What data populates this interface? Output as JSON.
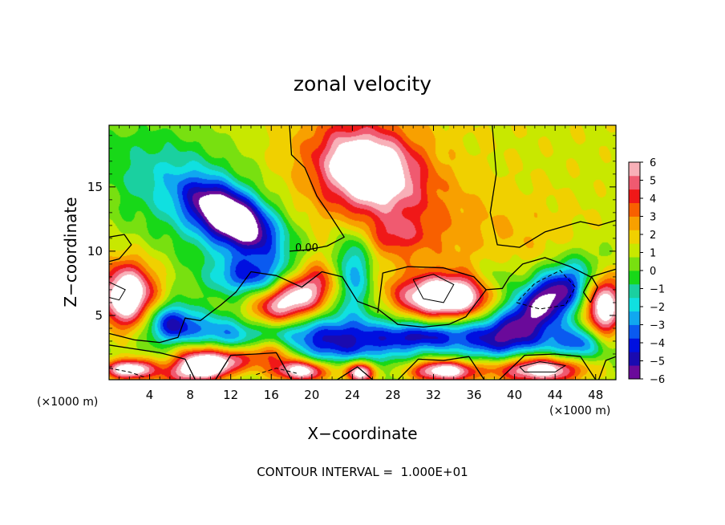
{
  "chart_data": {
    "type": "heatmap",
    "title": "zonal velocity",
    "xlabel": "X−coordinate",
    "ylabel": "Z−coordinate",
    "x_unit_left": "(×1000 m)",
    "x_unit_right": "(×1000 m)",
    "footer": "CONTOUR INTERVAL =  1.000E+01",
    "contour_label": "0.00",
    "xlim": [
      0,
      50
    ],
    "ylim": [
      0,
      19.8
    ],
    "xticks": [
      {
        "v": 4,
        "label": "4"
      },
      {
        "v": 8,
        "label": "8"
      },
      {
        "v": 12,
        "label": "12"
      },
      {
        "v": 16,
        "label": "16"
      },
      {
        "v": 20,
        "label": "20"
      },
      {
        "v": 24,
        "label": "24"
      },
      {
        "v": 28,
        "label": "28"
      },
      {
        "v": 32,
        "label": "32"
      },
      {
        "v": 36,
        "label": "36"
      },
      {
        "v": 40,
        "label": "40"
      },
      {
        "v": 44,
        "label": "44"
      },
      {
        "v": 48,
        "label": "48"
      }
    ],
    "yticks": [
      {
        "v": 5,
        "label": "5"
      },
      {
        "v": 10,
        "label": "10"
      },
      {
        "v": 15,
        "label": "15"
      }
    ],
    "colorbar": {
      "min": -6,
      "max": 6,
      "ticks": [
        "6",
        "5",
        "4",
        "3",
        "2",
        "1",
        "0",
        "−1",
        "−2",
        "−3",
        "−4",
        "−5",
        "−6"
      ],
      "colors": [
        "#6a0a9a",
        "#1a0ab0",
        "#0010e0",
        "#0a5af0",
        "#10a8f0",
        "#10e0e0",
        "#1ad0a0",
        "#18d818",
        "#78e010",
        "#c8e800",
        "#f0d000",
        "#f8a000",
        "#f86000",
        "#f01818",
        "#f05a70",
        "#f8b0b8"
      ]
    },
    "features": [
      {
        "x": 12.3,
        "z": 12.6,
        "a": 4.5,
        "b": 2.0,
        "rot": -24,
        "amp": -7.5
      },
      {
        "x": 10.5,
        "z": 12.5,
        "a": 7.5,
        "b": 3.4,
        "rot": -24,
        "amp": -2.8
      },
      {
        "x": 25.5,
        "z": 16.5,
        "a": 4.5,
        "b": 2.8,
        "rot": -10,
        "amp": 5.8
      },
      {
        "x": 27.0,
        "z": 14.0,
        "a": 9.0,
        "b": 5.5,
        "rot": -25,
        "amp": 2.6
      },
      {
        "x": 28.5,
        "z": 11.2,
        "a": 2.5,
        "b": 1.2,
        "rot": 0,
        "amp": 1.5
      },
      {
        "x": 4.0,
        "z": 17.0,
        "a": 9.0,
        "b": 4.5,
        "rot": 0,
        "amp": -1.5
      },
      {
        "x": 1.8,
        "z": 6.5,
        "a": 2.8,
        "b": 2.6,
        "rot": 0,
        "amp": 7.5
      },
      {
        "x": 18.0,
        "z": 6.2,
        "a": 4.8,
        "b": 2.0,
        "rot": 22,
        "amp": 7.0
      },
      {
        "x": 33.2,
        "z": 6.4,
        "a": 4.6,
        "b": 1.6,
        "rot": 0,
        "amp": 8.0
      },
      {
        "x": 43.3,
        "z": 6.3,
        "a": 4.6,
        "b": 2.0,
        "rot": 26,
        "amp": -7.5
      },
      {
        "x": 48.8,
        "z": 5.6,
        "a": 1.8,
        "b": 2.6,
        "rot": 0,
        "amp": 7.0
      },
      {
        "x": 9.5,
        "z": 0.9,
        "a": 4.0,
        "b": 1.1,
        "rot": 8,
        "amp": 7.0
      },
      {
        "x": 19.0,
        "z": 0.7,
        "a": 3.0,
        "b": 0.9,
        "rot": 0,
        "amp": 7.0
      },
      {
        "x": 24.8,
        "z": 0.6,
        "a": 1.6,
        "b": 0.9,
        "rot": 0,
        "amp": 7.0
      },
      {
        "x": 33.0,
        "z": 0.7,
        "a": 3.5,
        "b": 0.9,
        "rot": 0,
        "amp": 7.0
      },
      {
        "x": 42.5,
        "z": 0.8,
        "a": 4.5,
        "b": 1.1,
        "rot": 0,
        "amp": 7.0
      },
      {
        "x": 2.0,
        "z": 0.8,
        "a": 2.5,
        "b": 0.8,
        "rot": 0,
        "amp": 7.0
      },
      {
        "x": 22.5,
        "z": 3.0,
        "a": 8.0,
        "b": 2.0,
        "rot": 0,
        "amp": -5.0
      },
      {
        "x": 12.0,
        "z": 3.5,
        "a": 6.0,
        "b": 1.6,
        "rot": 0,
        "amp": -4.0
      },
      {
        "x": 6.0,
        "z": 4.5,
        "a": 2.5,
        "b": 1.5,
        "rot": 0,
        "amp": -4.5
      },
      {
        "x": 38.5,
        "z": 3.2,
        "a": 5.0,
        "b": 1.8,
        "rot": 0,
        "amp": -4.5
      },
      {
        "x": 46.5,
        "z": 2.8,
        "a": 3.0,
        "b": 1.4,
        "rot": 0,
        "amp": -4.0
      },
      {
        "x": 31.0,
        "z": 3.4,
        "a": 4.0,
        "b": 1.0,
        "rot": 0,
        "amp": -3.5
      },
      {
        "x": 24.0,
        "z": 8.5,
        "a": 2.0,
        "b": 3.0,
        "rot": 0,
        "amp": -5.0
      },
      {
        "x": 14.0,
        "z": 8.0,
        "a": 4.0,
        "b": 1.5,
        "rot": 0,
        "amp": -4.0
      },
      {
        "x": 38.0,
        "z": 7.5,
        "a": 2.0,
        "b": 1.8,
        "rot": 0,
        "amp": -2.0
      },
      {
        "x": 9.0,
        "z": 2.0,
        "a": 3.0,
        "b": 1.2,
        "rot": 0,
        "amp": 4.0
      },
      {
        "x": 16.0,
        "z": 2.2,
        "a": 3.0,
        "b": 1.2,
        "rot": 0,
        "amp": 5.0
      },
      {
        "x": 41.0,
        "z": 11.0,
        "a": 8.0,
        "b": 4.0,
        "rot": 0,
        "amp": 1.0
      }
    ],
    "zero_contours": [
      [
        [
          0,
          11.1
        ],
        [
          1.5,
          11.3
        ],
        [
          2.2,
          10.5
        ],
        [
          1.0,
          9.4
        ],
        [
          0,
          9.2
        ]
      ],
      [
        [
          17.8,
          19.8
        ],
        [
          18.0,
          17.5
        ],
        [
          19.3,
          16.5
        ],
        [
          20.5,
          14.3
        ],
        [
          21.8,
          12.8
        ],
        [
          23.2,
          11.1
        ],
        [
          21.5,
          10.4
        ],
        [
          19.5,
          10.1
        ],
        [
          17.8,
          10.0
        ]
      ],
      [
        [
          37.8,
          19.8
        ],
        [
          38.2,
          16.0
        ],
        [
          37.6,
          13.0
        ],
        [
          38.3,
          10.5
        ],
        [
          40.5,
          10.3
        ],
        [
          43.0,
          11.5
        ],
        [
          46.5,
          12.3
        ],
        [
          48.3,
          12.0
        ],
        [
          50,
          12.4
        ]
      ],
      [
        [
          0,
          3.6
        ],
        [
          2.5,
          3.1
        ],
        [
          5.0,
          2.9
        ],
        [
          6.8,
          3.3
        ],
        [
          7.5,
          4.8
        ],
        [
          9.0,
          4.6
        ],
        [
          11.0,
          5.8
        ],
        [
          12.5,
          6.8
        ],
        [
          14.0,
          8.4
        ],
        [
          16.5,
          8.1
        ],
        [
          19.0,
          7.2
        ],
        [
          21.0,
          8.4
        ],
        [
          23.0,
          8.0
        ],
        [
          24.5,
          6.1
        ],
        [
          26.5,
          5.5
        ],
        [
          28.5,
          4.3
        ],
        [
          31.0,
          4.1
        ],
        [
          33.5,
          4.3
        ],
        [
          35.2,
          4.9
        ],
        [
          37.2,
          7.0
        ],
        [
          38.8,
          7.1
        ],
        [
          39.5,
          8.0
        ]
      ],
      [
        [
          26.5,
          5.2
        ],
        [
          27.0,
          8.3
        ],
        [
          29.5,
          8.8
        ],
        [
          33.0,
          8.7
        ],
        [
          36.0,
          8.0
        ],
        [
          37.2,
          7.0
        ]
      ],
      [
        [
          39.5,
          8.0
        ],
        [
          40.8,
          9.0
        ],
        [
          43.0,
          9.5
        ],
        [
          45.5,
          8.8
        ],
        [
          47.5,
          8.0
        ],
        [
          50,
          8.6
        ]
      ],
      [
        [
          0,
          2.7
        ],
        [
          2.5,
          2.4
        ],
        [
          5.0,
          2.1
        ],
        [
          7.5,
          1.6
        ],
        [
          8.5,
          0
        ]
      ],
      [
        [
          10.5,
          0
        ],
        [
          12.0,
          1.9
        ],
        [
          14.5,
          2.0
        ],
        [
          16.5,
          2.1
        ],
        [
          18.0,
          0
        ]
      ],
      [
        [
          22.5,
          0
        ],
        [
          24.5,
          1.0
        ],
        [
          26.0,
          0
        ]
      ],
      [
        [
          28.5,
          0
        ],
        [
          30.5,
          1.6
        ],
        [
          33.0,
          1.5
        ],
        [
          35.5,
          1.8
        ],
        [
          37.0,
          0
        ]
      ],
      [
        [
          38.5,
          0
        ],
        [
          41.0,
          1.9
        ],
        [
          44.0,
          2.0
        ],
        [
          46.5,
          1.8
        ],
        [
          48.0,
          0
        ]
      ],
      [
        [
          48.3,
          0
        ],
        [
          49.0,
          1.5
        ],
        [
          50,
          1.8
        ]
      ],
      [
        [
          47.5,
          6.0
        ],
        [
          48.2,
          7.2
        ],
        [
          47.6,
          8.0
        ],
        [
          46.8,
          6.8
        ],
        [
          47.5,
          6.0
        ]
      ]
    ],
    "dashed_contours": [
      [
        [
          40.2,
          6.0
        ],
        [
          42.5,
          5.5
        ],
        [
          45.0,
          5.8
        ],
        [
          46.0,
          7.2
        ],
        [
          44.5,
          8.5
        ],
        [
          42.0,
          7.5
        ],
        [
          40.2,
          6.0
        ]
      ],
      [
        [
          14.5,
          0.4
        ],
        [
          16.5,
          0.9
        ],
        [
          18.5,
          0.5
        ]
      ],
      [
        [
          0,
          0.9
        ],
        [
          2.0,
          0.6
        ],
        [
          3.5,
          0.2
        ]
      ]
    ],
    "inner_contours": [
      [
        [
          30.0,
          7.8
        ],
        [
          32.0,
          8.2
        ],
        [
          34.0,
          7.4
        ],
        [
          33.0,
          6.0
        ],
        [
          31.0,
          6.3
        ],
        [
          30.0,
          7.8
        ]
      ],
      [
        [
          0,
          7.6
        ],
        [
          1.6,
          7.0
        ],
        [
          1.0,
          6.2
        ],
        [
          0,
          6.4
        ]
      ],
      [
        [
          40.5,
          1.0
        ],
        [
          42.5,
          1.4
        ],
        [
          45.0,
          1.1
        ],
        [
          44.0,
          0.6
        ],
        [
          41.0,
          0.6
        ],
        [
          40.5,
          1.0
        ]
      ]
    ]
  }
}
